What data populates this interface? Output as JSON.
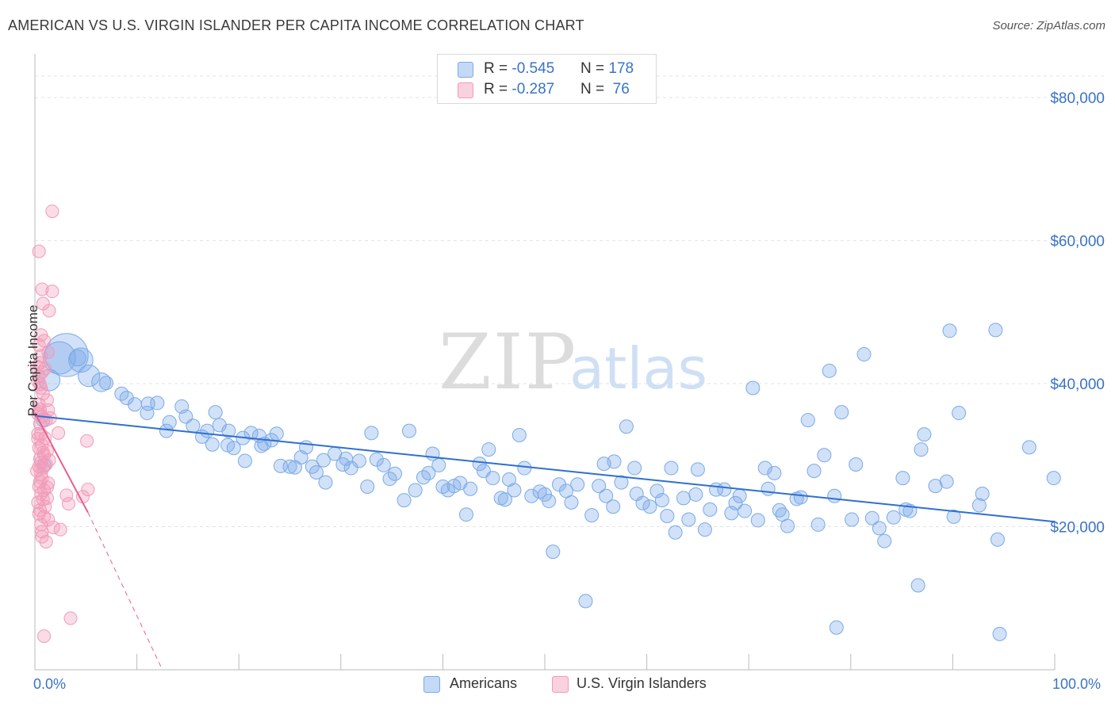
{
  "header": {
    "title": "AMERICAN VS U.S. VIRGIN ISLANDER PER CAPITA INCOME CORRELATION CHART",
    "source": "Source: ZipAtlas.com"
  },
  "watermark": {
    "zip": "ZIP",
    "atlas": "atlas"
  },
  "legend_top": [
    {
      "r_label": "R = ",
      "r_value": "-0.545",
      "n_label": "N = ",
      "n_value": "178",
      "color": "#7aaae8"
    },
    {
      "r_label": "R = ",
      "r_value": "-0.287",
      "n_label": "N = ",
      "n_value": " 76",
      "color": "#f29ab8"
    }
  ],
  "bottom_legend": {
    "americans": "Americans",
    "virgin": "U.S. Virgin Islanders"
  },
  "colors": {
    "blue_fill": "rgba(122,170,232,0.35)",
    "blue_stroke": "#7aaae8",
    "blue_line": "#2f6fd0",
    "pink_fill": "rgba(242,154,184,0.35)",
    "pink_stroke": "#f29ab8",
    "pink_line": "#e8608e",
    "axis_text": "#3a73c8",
    "grid": "#e3e3e3"
  },
  "chart_data": {
    "type": "scatter",
    "title": "AMERICAN VS U.S. VIRGIN ISLANDER PER CAPITA INCOME CORRELATION CHART",
    "xlabel": "",
    "ylabel": "Per Capita Income",
    "xlim": [
      0,
      100
    ],
    "ylim": [
      0,
      85000
    ],
    "x_tick_labels": [
      "0.0%",
      "100.0%"
    ],
    "y_ticks": [
      20000,
      40000,
      60000,
      80000
    ],
    "y_tick_labels": [
      "$20,000",
      "$40,000",
      "$60,000",
      "$80,000"
    ],
    "grid": true,
    "legend_position": "top-center",
    "series": [
      {
        "name": "Americans",
        "r": -0.545,
        "n": 178,
        "trend": {
          "x": [
            0,
            100
          ],
          "y": [
            35500,
            20700
          ]
        },
        "points": [
          [
            3.1,
            44000,
            3.2
          ],
          [
            2.4,
            43600,
            2.4
          ],
          [
            4.5,
            43300,
            1.8
          ],
          [
            4.2,
            43600,
            1.2
          ],
          [
            1.4,
            40500,
            1.6
          ],
          [
            5.3,
            41100,
            1.6
          ],
          [
            6.5,
            40200,
            1.4
          ],
          [
            7,
            40100,
            1
          ],
          [
            8.5,
            38600,
            1
          ],
          [
            9,
            38000,
            1
          ],
          [
            9.8,
            37100,
            1
          ],
          [
            11.1,
            37200,
            1
          ],
          [
            12,
            37300,
            1
          ],
          [
            11,
            35900,
            1
          ],
          [
            14.4,
            36800,
            1
          ],
          [
            13.2,
            34600,
            1
          ],
          [
            14.8,
            35400,
            1
          ],
          [
            12.9,
            33400,
            1
          ],
          [
            15.5,
            34100,
            1
          ],
          [
            17.7,
            36000,
            1
          ],
          [
            16.4,
            32600,
            1
          ],
          [
            16.9,
            33400,
            1
          ],
          [
            18.1,
            34200,
            1
          ],
          [
            17.4,
            31500,
            1
          ],
          [
            19,
            33400,
            1
          ],
          [
            18.9,
            31400,
            1
          ],
          [
            19.5,
            31000,
            1
          ],
          [
            20.4,
            32400,
            1
          ],
          [
            20.6,
            29200,
            1
          ],
          [
            21.2,
            33100,
            1
          ],
          [
            22,
            32700,
            1
          ],
          [
            22.2,
            31300,
            1
          ],
          [
            23.2,
            32100,
            1
          ],
          [
            22.5,
            31600,
            1
          ],
          [
            23.7,
            33000,
            1
          ],
          [
            24.1,
            28500,
            1
          ],
          [
            25,
            28400,
            1
          ],
          [
            25.5,
            28300,
            1
          ],
          [
            26.1,
            29700,
            1
          ],
          [
            26.6,
            31100,
            1
          ],
          [
            27.2,
            28400,
            1
          ],
          [
            27.6,
            27600,
            1
          ],
          [
            28.3,
            29300,
            1
          ],
          [
            28.5,
            26200,
            1
          ],
          [
            29.4,
            30200,
            1
          ],
          [
            30.2,
            28700,
            1
          ],
          [
            30.5,
            29500,
            1
          ],
          [
            31,
            28200,
            1
          ],
          [
            31.8,
            29200,
            1
          ],
          [
            32.6,
            25600,
            1
          ],
          [
            33,
            33100,
            1
          ],
          [
            33.5,
            29400,
            1
          ],
          [
            34.2,
            28600,
            1
          ],
          [
            34.8,
            26700,
            1
          ],
          [
            35.3,
            27400,
            1
          ],
          [
            36.2,
            23700,
            1
          ],
          [
            36.7,
            33400,
            1
          ],
          [
            37.3,
            25100,
            1
          ],
          [
            38.1,
            26900,
            1
          ],
          [
            38.6,
            27500,
            1
          ],
          [
            39,
            30200,
            1
          ],
          [
            39.6,
            28600,
            1
          ],
          [
            40,
            25600,
            1
          ],
          [
            40.5,
            25100,
            1
          ],
          [
            41.1,
            25700,
            1
          ],
          [
            41.7,
            26100,
            1
          ],
          [
            42.3,
            21700,
            1
          ],
          [
            42.7,
            25300,
            1
          ],
          [
            43.6,
            28800,
            1
          ],
          [
            44,
            27800,
            1
          ],
          [
            44.5,
            30800,
            1
          ],
          [
            44.9,
            26800,
            1
          ],
          [
            45.7,
            24000,
            1
          ],
          [
            46.1,
            23800,
            1
          ],
          [
            46.5,
            26600,
            1
          ],
          [
            47,
            25100,
            1
          ],
          [
            47.5,
            32800,
            1
          ],
          [
            48,
            28200,
            1
          ],
          [
            48.7,
            24300,
            1
          ],
          [
            49.5,
            24900,
            1
          ],
          [
            50,
            24500,
            1
          ],
          [
            50.4,
            23600,
            1
          ],
          [
            50.8,
            16500,
            1
          ],
          [
            51.4,
            25900,
            1
          ],
          [
            52.1,
            25000,
            1
          ],
          [
            52.6,
            23400,
            1
          ],
          [
            53.2,
            25900,
            1
          ],
          [
            54,
            9600,
            1
          ],
          [
            54.6,
            21600,
            1
          ],
          [
            55.3,
            25700,
            1
          ],
          [
            55.8,
            28800,
            1
          ],
          [
            56,
            24300,
            1
          ],
          [
            56.7,
            22800,
            1
          ],
          [
            56.8,
            29100,
            1
          ],
          [
            57.5,
            26200,
            1
          ],
          [
            58,
            34000,
            1
          ],
          [
            58.8,
            28200,
            1
          ],
          [
            59,
            24600,
            1
          ],
          [
            59.6,
            23300,
            1
          ],
          [
            60.3,
            22800,
            1
          ],
          [
            61,
            25000,
            1
          ],
          [
            61.5,
            23700,
            1
          ],
          [
            62,
            21500,
            1
          ],
          [
            62.4,
            28200,
            1
          ],
          [
            62.8,
            19200,
            1
          ],
          [
            63.6,
            24000,
            1
          ],
          [
            64.1,
            21000,
            1
          ],
          [
            64.8,
            24500,
            1
          ],
          [
            65,
            28000,
            1
          ],
          [
            65.7,
            19600,
            1
          ],
          [
            66.2,
            22400,
            1
          ],
          [
            66.8,
            25200,
            1
          ],
          [
            67.6,
            25200,
            1
          ],
          [
            68.3,
            21900,
            1
          ],
          [
            68.7,
            23300,
            1
          ],
          [
            69.1,
            24300,
            1
          ],
          [
            69.6,
            22200,
            1
          ],
          [
            70.4,
            39400,
            1
          ],
          [
            70.9,
            20900,
            1
          ],
          [
            71.6,
            28200,
            1
          ],
          [
            71.9,
            25300,
            1
          ],
          [
            72.5,
            27500,
            1
          ],
          [
            73,
            22300,
            1
          ],
          [
            73.3,
            21700,
            1
          ],
          [
            73.8,
            20100,
            1
          ],
          [
            74.7,
            23900,
            1
          ],
          [
            75.1,
            24100,
            1
          ],
          [
            75.8,
            34900,
            1
          ],
          [
            76.4,
            27800,
            1
          ],
          [
            76.8,
            20300,
            1
          ],
          [
            77.4,
            30000,
            1
          ],
          [
            77.9,
            41800,
            1
          ],
          [
            78.4,
            24300,
            1
          ],
          [
            78.6,
            5900,
            1
          ],
          [
            79.1,
            36000,
            1
          ],
          [
            80.1,
            21000,
            1
          ],
          [
            80.5,
            28700,
            1
          ],
          [
            81.3,
            44100,
            1
          ],
          [
            82.1,
            21200,
            1
          ],
          [
            82.8,
            19800,
            1
          ],
          [
            83.3,
            18000,
            1
          ],
          [
            84.2,
            21300,
            1
          ],
          [
            85.1,
            26800,
            1
          ],
          [
            85.4,
            22400,
            1
          ],
          [
            85.8,
            22200,
            1
          ],
          [
            86.6,
            11800,
            1
          ],
          [
            86.9,
            30800,
            1
          ],
          [
            87.2,
            32900,
            1
          ],
          [
            88.3,
            25700,
            1
          ],
          [
            89.4,
            26300,
            1
          ],
          [
            89.7,
            47400,
            1
          ],
          [
            90.1,
            21400,
            1
          ],
          [
            90.6,
            35900,
            1
          ],
          [
            92.6,
            23000,
            1
          ],
          [
            92.9,
            24600,
            1
          ],
          [
            94.2,
            47500,
            1
          ],
          [
            94.4,
            18200,
            1
          ],
          [
            94.6,
            5000,
            1
          ],
          [
            97.5,
            31100,
            1
          ],
          [
            99.9,
            26800,
            1
          ],
          [
            0.8,
            34900,
            1
          ],
          [
            0.9,
            28600,
            1
          ]
        ]
      },
      {
        "name": "U.S. Virgin Islanders",
        "r": -0.287,
        "n": 76,
        "trend": {
          "x": [
            0,
            5.2
          ],
          "y": [
            35900,
            22000
          ]
        },
        "trend_extension": {
          "x": [
            5.2,
            12.5
          ],
          "y": [
            22000,
            0
          ]
        },
        "points": [
          [
            1.7,
            64100
          ],
          [
            0.4,
            58500
          ],
          [
            0.7,
            53200
          ],
          [
            1.7,
            52900
          ],
          [
            0.8,
            51200
          ],
          [
            1.4,
            50200
          ],
          [
            0.6,
            46800
          ],
          [
            0.9,
            46000
          ],
          [
            0.4,
            45400
          ],
          [
            1.3,
            44400
          ],
          [
            0.6,
            43900
          ],
          [
            0.5,
            42900
          ],
          [
            0.2,
            42400
          ],
          [
            1,
            42100
          ],
          [
            0.7,
            41600
          ],
          [
            0.4,
            41000
          ],
          [
            0.3,
            40300
          ],
          [
            0.6,
            39400
          ],
          [
            0.8,
            38600
          ],
          [
            1.2,
            37700
          ],
          [
            0.4,
            37100
          ],
          [
            0.5,
            36400
          ],
          [
            1.3,
            36300
          ],
          [
            0.3,
            35800
          ],
          [
            0.7,
            35400
          ],
          [
            1.1,
            34900
          ],
          [
            0.5,
            34400
          ],
          [
            2.3,
            33100
          ],
          [
            0.6,
            32900
          ],
          [
            1,
            32400
          ],
          [
            0.3,
            32300
          ],
          [
            5.1,
            32000
          ],
          [
            0.7,
            31400
          ],
          [
            0.4,
            31000
          ],
          [
            1.2,
            30600
          ],
          [
            0.9,
            30000
          ],
          [
            0.5,
            29500
          ],
          [
            1.4,
            29300
          ],
          [
            0.6,
            29000
          ],
          [
            1.1,
            28700
          ],
          [
            0.4,
            28400
          ],
          [
            0.8,
            28200
          ],
          [
            0.2,
            27800
          ],
          [
            0.7,
            26800
          ],
          [
            0.5,
            26300
          ],
          [
            0.4,
            25600
          ],
          [
            1.2,
            25500
          ],
          [
            0.9,
            25100
          ],
          [
            5.2,
            25200
          ],
          [
            0.6,
            24600
          ],
          [
            3.1,
            24400
          ],
          [
            4.7,
            24200
          ],
          [
            0.8,
            23800
          ],
          [
            0.3,
            23400
          ],
          [
            3.3,
            23200
          ],
          [
            1,
            22800
          ],
          [
            0.5,
            22300
          ],
          [
            0.9,
            21400
          ],
          [
            1.3,
            21000
          ],
          [
            0.6,
            20300
          ],
          [
            1.8,
            19900
          ],
          [
            2.5,
            19600
          ],
          [
            0.7,
            19300
          ],
          [
            1.1,
            17900
          ],
          [
            3.5,
            7200
          ],
          [
            0.9,
            4700
          ],
          [
            0.4,
            36100
          ],
          [
            1.5,
            35200
          ],
          [
            0.3,
            33000
          ],
          [
            0.8,
            30400
          ],
          [
            0.6,
            27300
          ],
          [
            1.2,
            24000
          ],
          [
            0.4,
            21800
          ],
          [
            0.7,
            18600
          ],
          [
            1.3,
            26100
          ],
          [
            0.5,
            39900
          ]
        ]
      }
    ]
  }
}
